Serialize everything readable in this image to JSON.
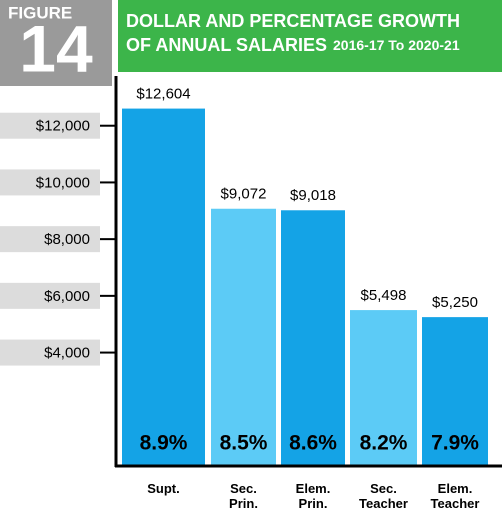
{
  "chart_data": {
    "type": "bar",
    "figure_label": "FIGURE",
    "figure_number": "14",
    "title": "DOLLAR AND PERCENTAGE GROWTH",
    "title_line2": "OF ANNUAL SALARIES",
    "subtitle": "2016-17 To 2020-21",
    "categories": [
      "Supt.",
      "Sec. Prin.",
      "Elem. Prin.",
      "Sec. Teacher",
      "Elem. Teacher"
    ],
    "values": [
      12604,
      9072,
      9018,
      5498,
      5250
    ],
    "value_labels": [
      "$12,604",
      "$9,072",
      "$9,018",
      "$5,498",
      "$5,250"
    ],
    "colors": [
      "#14a3e6",
      "#5ccbf6",
      "#14a3e6",
      "#5ccbf6",
      "#14a3e6"
    ],
    "percent_growth": {
      "values": [
        8.9,
        8.5,
        8.6,
        8.2,
        7.9
      ],
      "value_labels": [
        "8.9%",
        "8.5%",
        "8.6%",
        "8.2%",
        "7.9%"
      ]
    },
    "ylim": [
      0,
      14000
    ],
    "yticks": [
      {
        "value": 4000,
        "label": "$4,000"
      },
      {
        "value": 6000,
        "label": "$6,000"
      },
      {
        "value": 8000,
        "label": "$8,000"
      },
      {
        "value": 10000,
        "label": "$10,000"
      },
      {
        "value": 12000,
        "label": "$12,000"
      }
    ]
  }
}
